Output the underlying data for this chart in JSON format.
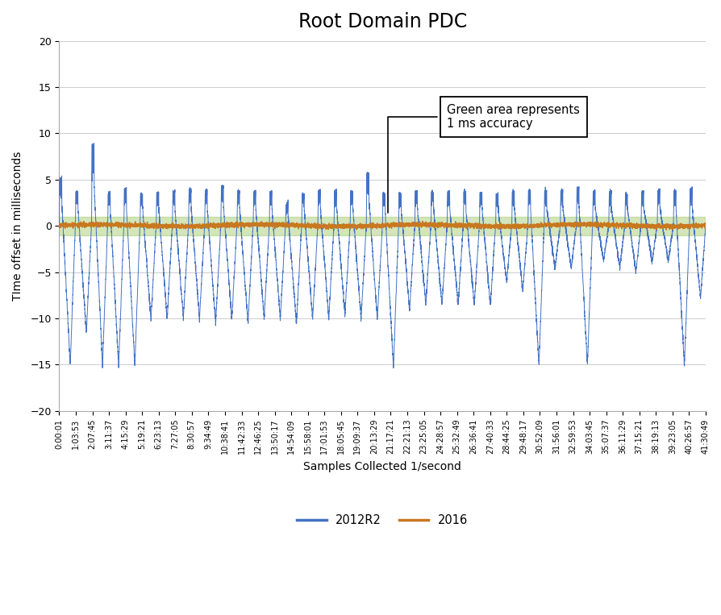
{
  "title": "Root Domain PDC",
  "xlabel": "Samples Collected 1/second",
  "ylabel": "TIme offset in milliseconds",
  "ylim": [
    -20,
    20
  ],
  "yticks": [
    -20,
    -15,
    -10,
    -5,
    0,
    5,
    10,
    15,
    20
  ],
  "green_band": [
    -1,
    1
  ],
  "blue_color": "#4472C4",
  "orange_color": "#C87820",
  "green_color": "#92C050",
  "green_alpha": 0.4,
  "annotation_text": "Green area represents\n1 ms accuracy",
  "xtick_labels": [
    "0:00:01",
    "1:03:53",
    "2:07:45",
    "3:11:37",
    "4:15:29",
    "5:19:21",
    "6:23:13",
    "7:27:05",
    "8:30:57",
    "9:34:49",
    "10:38:41",
    "11:42:33",
    "12:46:25",
    "13:50:17",
    "14:54:09",
    "15:58:01",
    "17:01:53",
    "18:05:45",
    "19:09:37",
    "20:13:29",
    "21:17:21",
    "22:21:13",
    "23:25:05",
    "24:28:57",
    "25:32:49",
    "26:36:41",
    "27:40:33",
    "28:44:25",
    "29:48:17",
    "30:52:09",
    "31:56:01",
    "32:59:53",
    "34:03:45",
    "35:07:37",
    "36:11:29",
    "37:15:21",
    "38:19:13",
    "39:23:05",
    "40:26:57",
    "41:30:49"
  ],
  "peak_positive": [
    5.1,
    3.7,
    8.8,
    3.5,
    4.0,
    3.5,
    3.6,
    3.8,
    4.0,
    3.8,
    4.3,
    3.8,
    3.7,
    3.7,
    2.3,
    3.5,
    3.8,
    3.8,
    3.8,
    5.7,
    3.6,
    3.6,
    3.8,
    3.7,
    3.7,
    3.7,
    3.6,
    3.5,
    3.7,
    3.8,
    3.8,
    3.8,
    4.2,
    3.7,
    3.7,
    3.6,
    3.7,
    3.8,
    3.8,
    4.0
  ],
  "peak_negative": [
    -15.0,
    -11.5,
    -15.0,
    -15.0,
    -15.0,
    -10.0,
    -10.0,
    -10.0,
    -10.0,
    -10.5,
    -10.0,
    -10.5,
    -10.0,
    -10.0,
    -10.5,
    -10.0,
    -10.0,
    -9.5,
    -10.0,
    -10.0,
    -15.3,
    -9.0,
    -8.5,
    -8.5,
    -8.5,
    -8.5,
    -8.5,
    -6.0,
    -7.0,
    -15.0,
    -4.5,
    -4.5,
    -15.0,
    -3.8,
    -4.5,
    -5.0,
    -3.8,
    -3.8,
    -15.0,
    -7.8
  ],
  "legend_blue": "2012R2",
  "legend_orange": "2016",
  "figure_bg": "#FFFFFF",
  "pts_per_cycle": 200
}
